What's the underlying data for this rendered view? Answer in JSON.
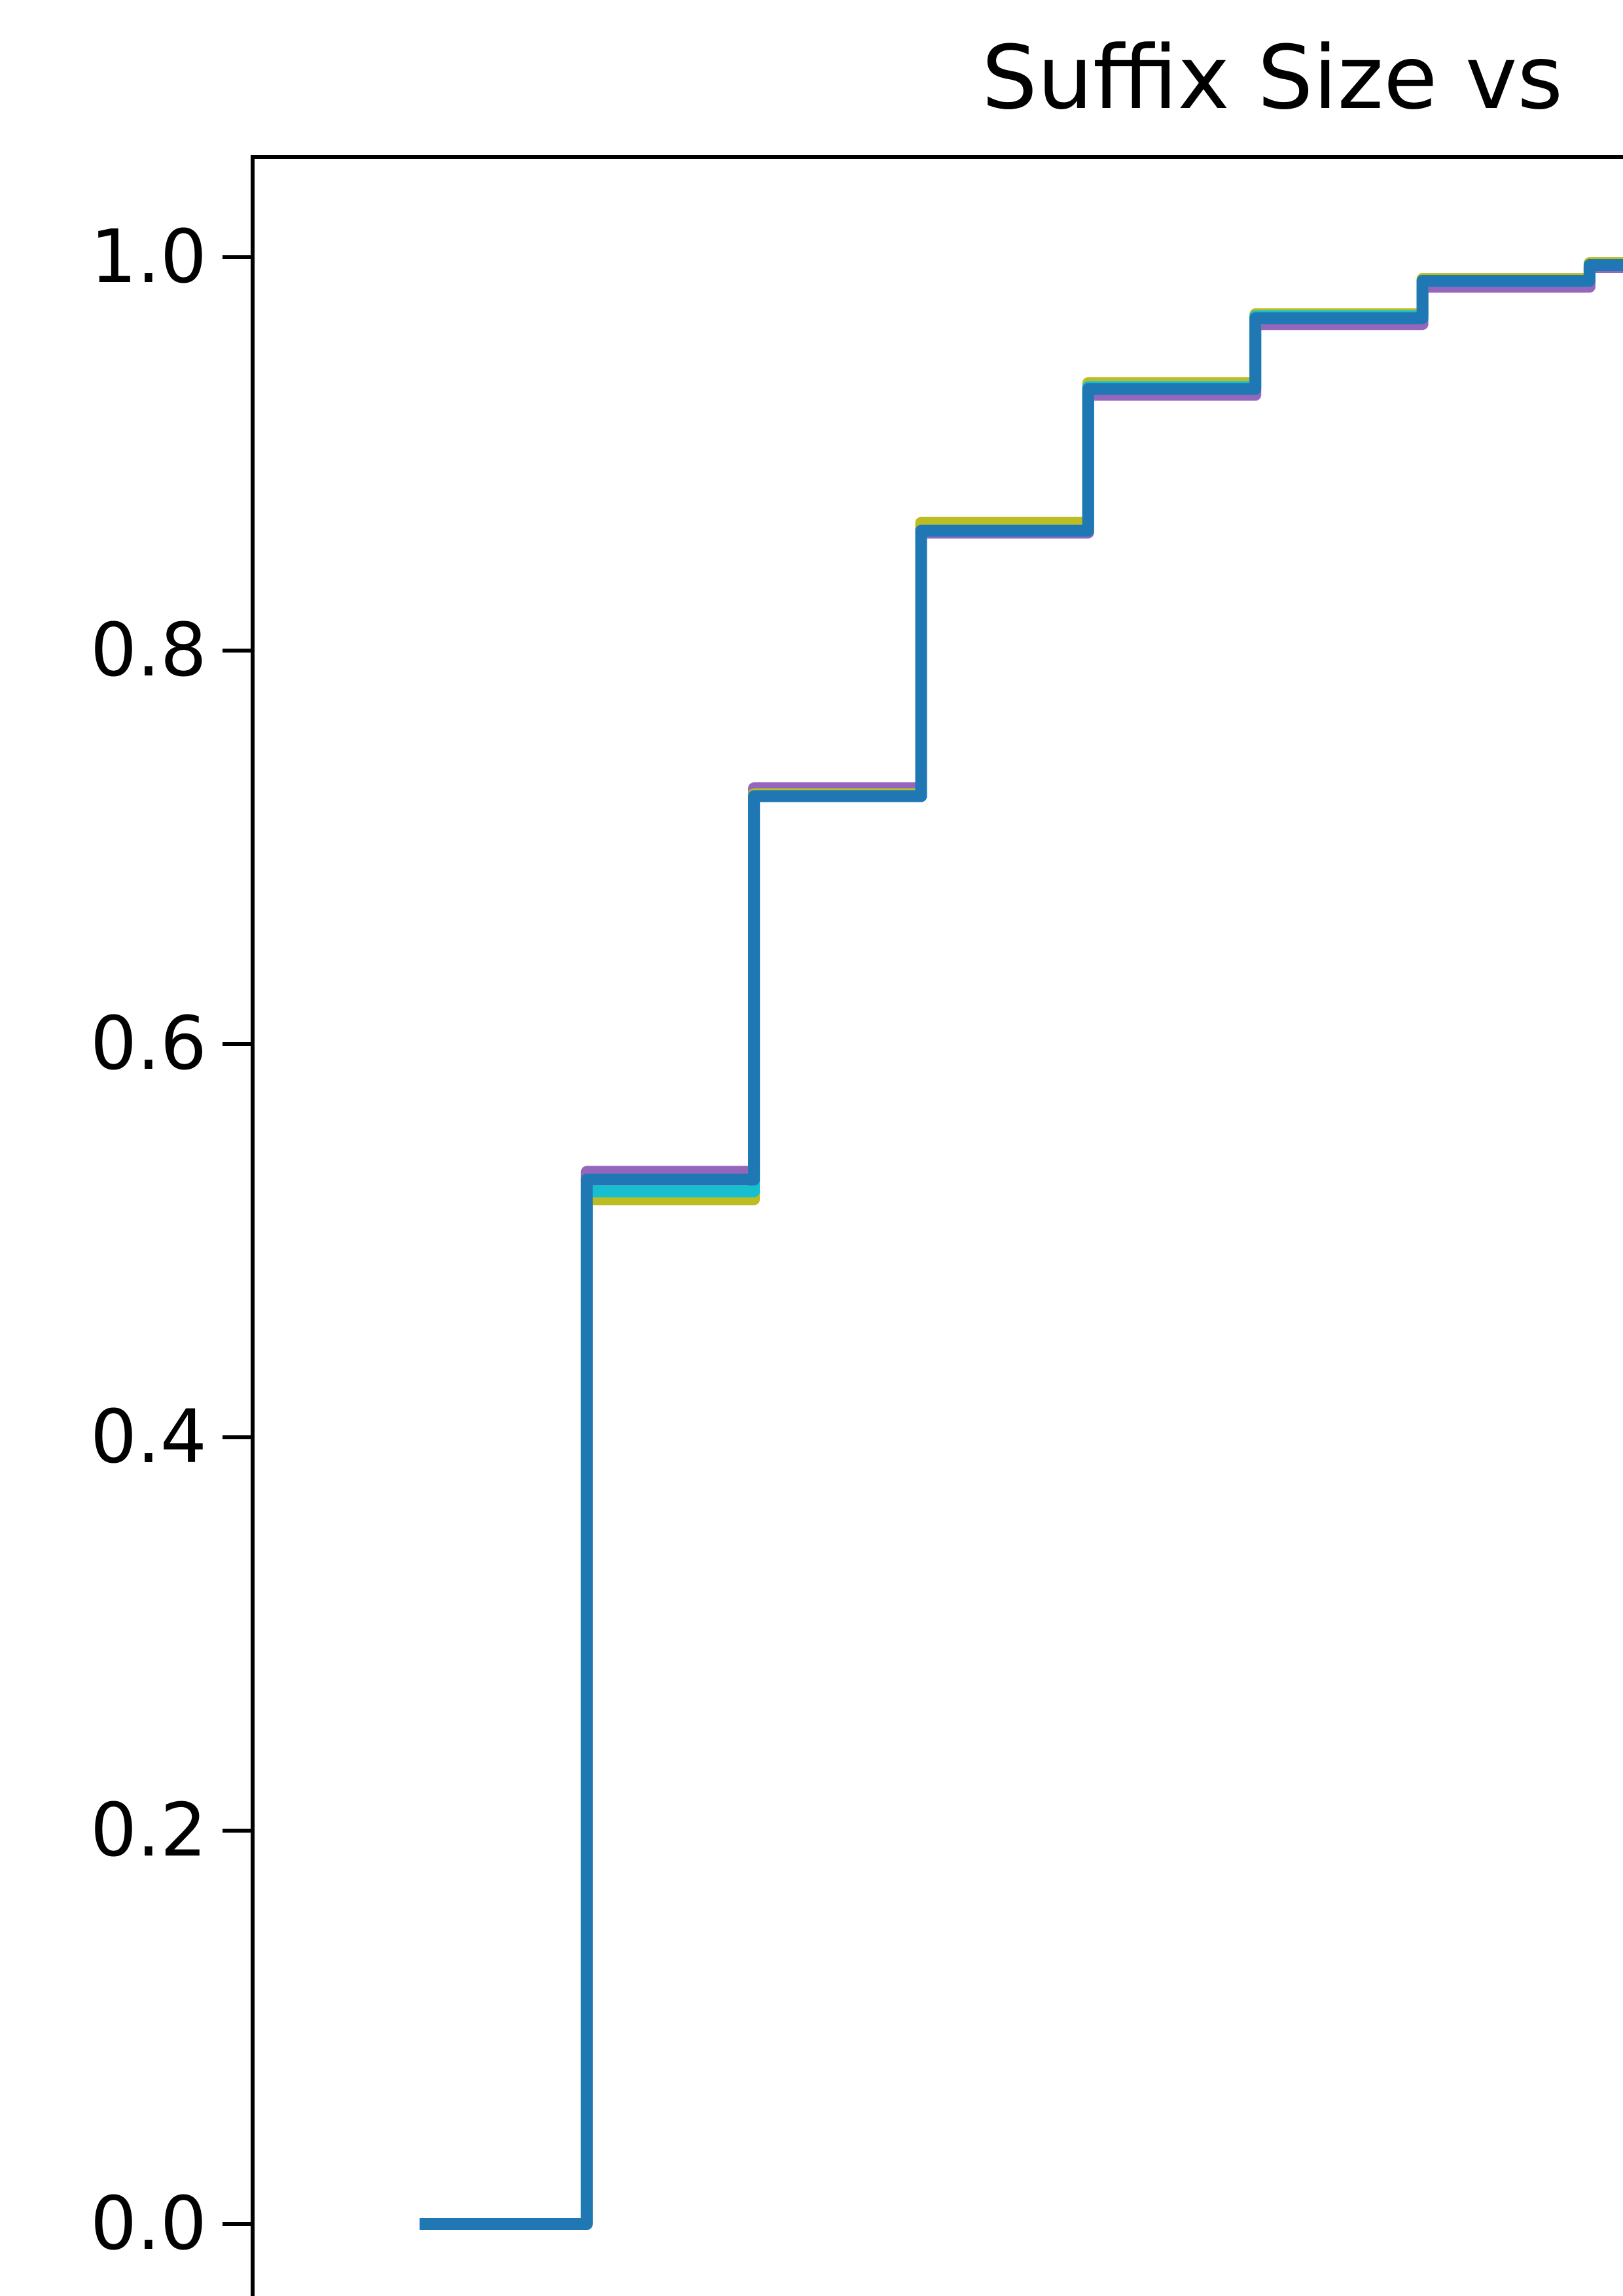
{
  "chart_data": {
    "type": "line",
    "title": "Suffix Size vs",
    "xlabel": "",
    "ylabel": "",
    "ylim": [
      0.0,
      1.0
    ],
    "yticks": [
      0.0,
      0.2,
      0.4,
      0.6,
      0.8,
      1.0
    ],
    "ytick_labels": [
      "0.0",
      "0.2",
      "0.4",
      "0.6",
      "0.8",
      "1.0"
    ],
    "xlim": [
      0,
      8.2
    ],
    "grid": false,
    "step": "post",
    "series": [
      {
        "color": "#9467bd",
        "x": [
          1,
          2,
          3,
          4,
          5,
          6,
          7,
          8,
          9
        ],
        "y": [
          0.0,
          0.535,
          0.73,
          0.86,
          0.93,
          0.966,
          0.985,
          0.995,
          1.0
        ]
      },
      {
        "color": "#bcbd22",
        "x": [
          1,
          2,
          3,
          4,
          5,
          6,
          7,
          8,
          9
        ],
        "y": [
          0.0,
          0.521,
          0.727,
          0.865,
          0.936,
          0.971,
          0.989,
          0.997,
          1.0
        ]
      },
      {
        "color": "#17becf",
        "x": [
          1,
          2,
          3,
          4,
          5,
          6,
          7,
          8,
          9
        ],
        "y": [
          0.0,
          0.525,
          0.726,
          0.861,
          0.934,
          0.97,
          0.988,
          0.996,
          1.0
        ]
      },
      {
        "color": "#1f77b4",
        "x": [
          1,
          2,
          3,
          4,
          5,
          6,
          7,
          8,
          9
        ],
        "y": [
          0.0,
          0.531,
          0.726,
          0.861,
          0.933,
          0.969,
          0.988,
          0.996,
          1.0
        ]
      }
    ]
  }
}
